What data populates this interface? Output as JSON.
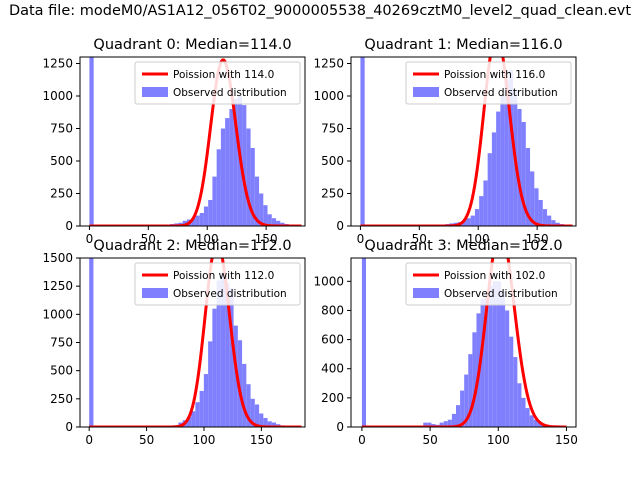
{
  "suptitle": "Data file: modeM0/AS1A12_056T02_9000005538_40269cztM0_level2_quad_clean.evt",
  "colors": {
    "observed": "#8080ff",
    "poisson": "#ff0000",
    "axis": "#000000"
  },
  "chart_data": [
    {
      "type": "bar",
      "title": "Quadrant 0: Median=114.0",
      "xlim": [
        -8,
        183
      ],
      "ylim": [
        0,
        1300
      ],
      "xticks": [
        0,
        50,
        100,
        150
      ],
      "yticks": [
        0,
        250,
        500,
        750,
        1000,
        1250
      ],
      "bin_edges_start": 0,
      "bin_width": 3.6,
      "observed_counts": [
        1300,
        0,
        0,
        0,
        0,
        0,
        0,
        0,
        0,
        0,
        0,
        0,
        0,
        0,
        0,
        0,
        0,
        10,
        10,
        15,
        20,
        25,
        40,
        50,
        60,
        80,
        100,
        150,
        200,
        380,
        590,
        750,
        830,
        900,
        980,
        1000,
        930,
        750,
        600,
        380,
        250,
        160,
        90,
        60,
        40,
        25,
        15,
        8,
        5,
        0
      ],
      "poisson_mean": 114.0,
      "legend": {
        "line_label": "Poission with 114.0",
        "bar_label": "Observed distribution",
        "placement": "upper right"
      }
    },
    {
      "type": "bar",
      "title": "Quadrant 1: Median=116.0",
      "xlim": [
        -8,
        183
      ],
      "ylim": [
        0,
        1300
      ],
      "xticks": [
        0,
        50,
        100,
        150
      ],
      "yticks": [
        0,
        250,
        500,
        750,
        1000,
        1250
      ],
      "bin_edges_start": 0,
      "bin_width": 3.6,
      "observed_counts": [
        1300,
        0,
        0,
        0,
        0,
        0,
        0,
        0,
        0,
        0,
        0,
        0,
        0,
        0,
        0,
        0,
        0,
        0,
        0,
        10,
        15,
        20,
        25,
        30,
        45,
        60,
        80,
        130,
        230,
        350,
        560,
        720,
        880,
        1000,
        1120,
        1200,
        1050,
        900,
        800,
        600,
        420,
        290,
        200,
        130,
        80,
        45,
        25,
        15,
        8,
        0
      ],
      "poisson_mean": 116.0,
      "legend": {
        "line_label": "Poission with 116.0",
        "bar_label": "Observed distribution",
        "placement": "upper right"
      }
    },
    {
      "type": "bar",
      "title": "Quadrant 2: Median=112.0",
      "xlim": [
        -8,
        188
      ],
      "ylim": [
        0,
        1500
      ],
      "xticks": [
        0,
        50,
        100,
        150
      ],
      "yticks": [
        0,
        250,
        500,
        750,
        1000,
        1250,
        1500
      ],
      "bin_edges_start": 0,
      "bin_width": 3.7,
      "observed_counts": [
        1500,
        0,
        0,
        0,
        0,
        0,
        0,
        0,
        0,
        0,
        0,
        0,
        0,
        0,
        0,
        0,
        0,
        0,
        0,
        5,
        15,
        40,
        60,
        90,
        140,
        220,
        320,
        470,
        760,
        1050,
        1300,
        1370,
        1280,
        1230,
        900,
        770,
        560,
        380,
        250,
        200,
        120,
        80,
        50,
        40,
        25,
        15,
        8,
        4,
        0,
        0
      ],
      "poisson_mean": 112.0,
      "legend": {
        "line_label": "Poission with 112.0",
        "bar_label": "Observed distribution",
        "placement": "upper right"
      }
    },
    {
      "type": "bar",
      "title": "Quadrant 3: Median=102.0",
      "xlim": [
        -8,
        157
      ],
      "ylim": [
        0,
        1160
      ],
      "xticks": [
        0,
        50,
        100,
        150
      ],
      "yticks": [
        0,
        200,
        400,
        600,
        800,
        1000
      ],
      "bin_edges_start": 0,
      "bin_width": 3.0,
      "observed_counts": [
        1160,
        0,
        0,
        0,
        0,
        0,
        0,
        0,
        0,
        0,
        0,
        0,
        0,
        0,
        10,
        30,
        30,
        20,
        15,
        30,
        40,
        50,
        90,
        150,
        250,
        360,
        500,
        650,
        780,
        880,
        920,
        970,
        1000,
        1000,
        930,
        800,
        620,
        480,
        300,
        200,
        130,
        80,
        50,
        30,
        15,
        8,
        4,
        0,
        0,
        0
      ],
      "poisson_mean": 102.0,
      "legend": {
        "line_label": "Poission with 102.0",
        "bar_label": "Observed distribution",
        "placement": "upper right"
      }
    }
  ]
}
